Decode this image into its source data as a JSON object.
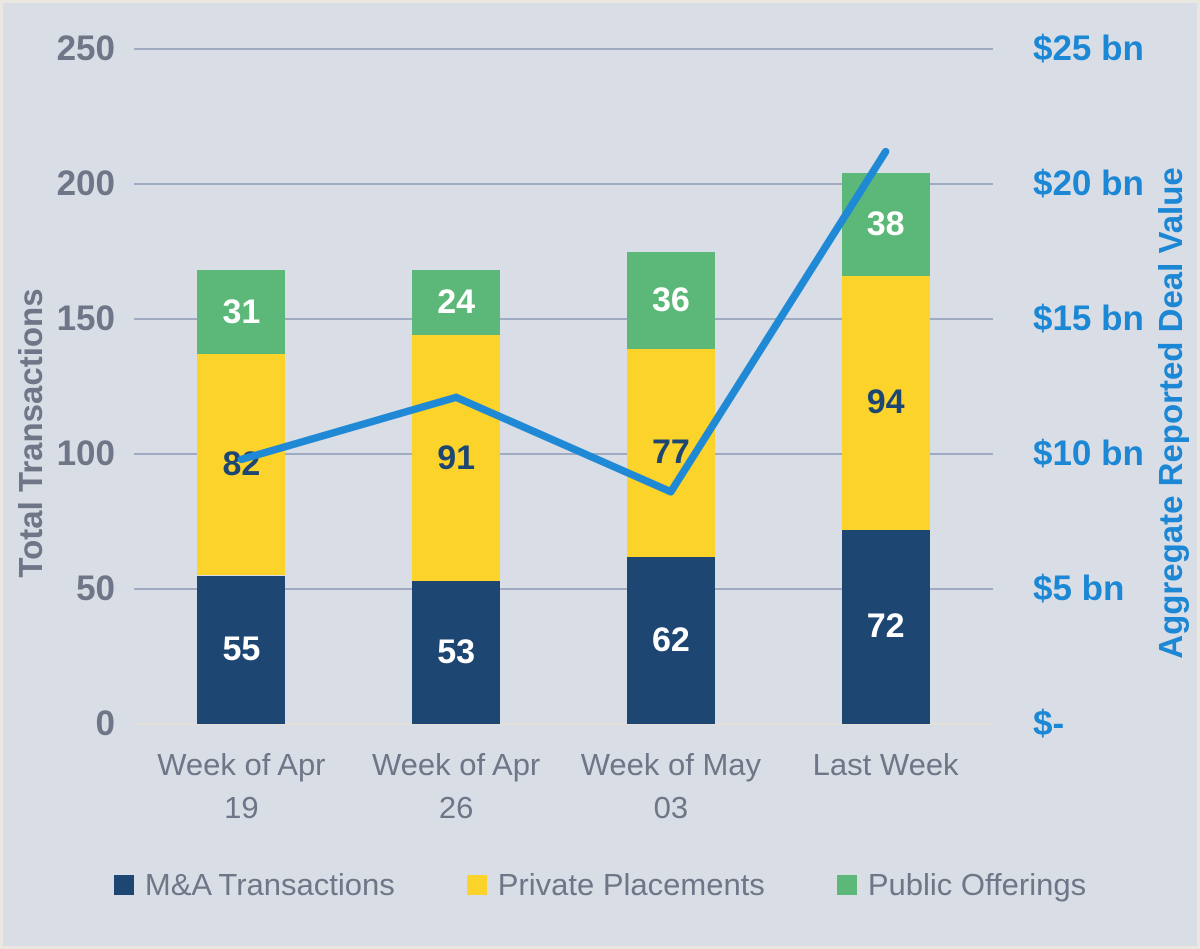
{
  "chart_data": {
    "type": "bar",
    "subtype": "stacked-bar-with-line",
    "categories": [
      "Week of Apr\n19",
      "Week of Apr\n26",
      "Week of May\n03",
      "Last Week"
    ],
    "series": [
      {
        "name": "M&A Transactions",
        "type": "bar",
        "color": "#1E4672",
        "label_color": "#FFFFFF",
        "values": [
          55,
          53,
          62,
          72
        ]
      },
      {
        "name": "Private Placements",
        "type": "bar",
        "color": "#FBD32B",
        "label_color": "#1E4672",
        "values": [
          82,
          91,
          77,
          94
        ]
      },
      {
        "name": "Public Offerings",
        "type": "bar",
        "color": "#5CB878",
        "label_color": "#FFFFFF",
        "values": [
          31,
          24,
          36,
          38
        ]
      },
      {
        "name": "Aggregate Reported Deal Value",
        "type": "line",
        "color": "#2089D5",
        "axis": "right",
        "values_bn": [
          9.8,
          12.1,
          8.6,
          21.2
        ]
      }
    ],
    "axes": {
      "left": {
        "title": "Total Transactions",
        "ticks": [
          "250",
          "200",
          "150",
          "100",
          "50",
          "0"
        ],
        "tick_values": [
          250,
          200,
          150,
          100,
          50,
          0
        ],
        "range": [
          0,
          250
        ],
        "color": "#6E7687"
      },
      "right": {
        "title": "Aggregate Reported Deal Value",
        "ticks": [
          "$25 bn",
          "$20 bn",
          "$15 bn",
          "$10 bn",
          "$5 bn",
          "$-"
        ],
        "tick_values": [
          25,
          20,
          15,
          10,
          5,
          0
        ],
        "range": [
          0,
          25
        ],
        "color": "#1C87D4"
      }
    },
    "legend": {
      "position": "bottom",
      "entries": [
        "M&A Transactions",
        "Private Placements",
        "Public Offerings"
      ]
    },
    "grid": "horizontal",
    "background": "#D9DDE6",
    "gridline_color": "#93A2BB"
  }
}
